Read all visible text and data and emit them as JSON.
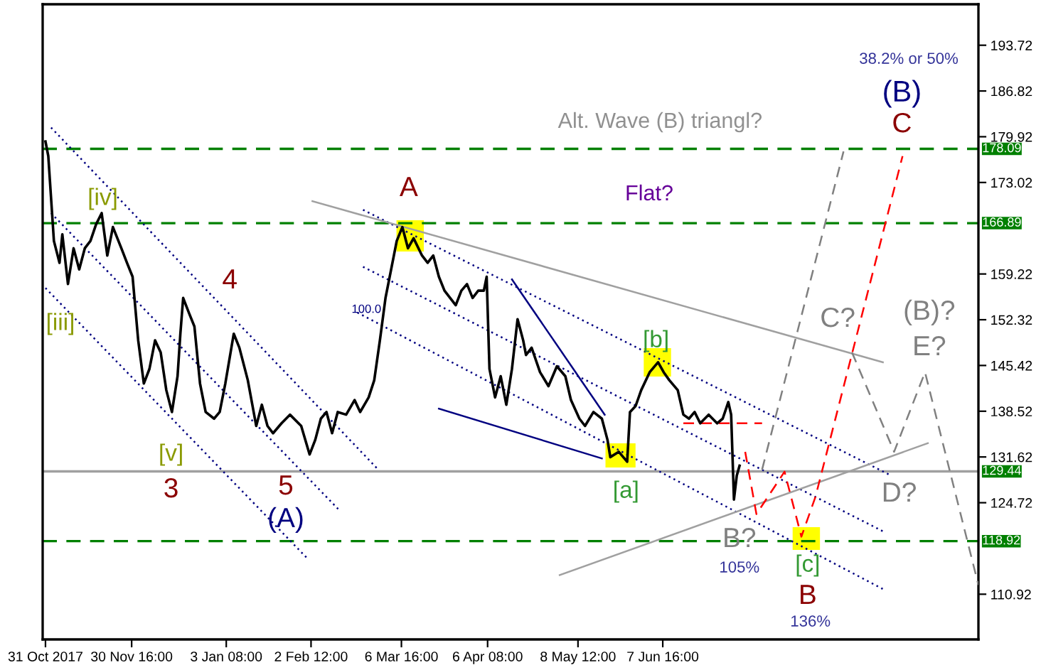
{
  "chart_data": {
    "type": "line",
    "xlim": [
      "2017-10-30",
      "2018-09-28"
    ],
    "ylim": [
      104.1,
      199.9
    ],
    "xticks": [
      {
        "value": "2017-10-31",
        "label": "31 Oct 2017"
      },
      {
        "value": "2017-11-30T16:00",
        "label": "30 Nov 16:00"
      },
      {
        "value": "2018-01-03T08:00",
        "label": "3 Jan 08:00"
      },
      {
        "value": "2018-02-02T12:00",
        "label": "2 Feb 12:00"
      },
      {
        "value": "2018-03-06T16:00",
        "label": "6 Mar 16:00"
      },
      {
        "value": "2018-04-06T08:00",
        "label": "6 Apr 08:00"
      },
      {
        "value": "2018-05-08T12:00",
        "label": "8 May 12:00"
      },
      {
        "value": "2018-06-07T16:00",
        "label": "7 Jun 16:00"
      }
    ],
    "yticks": [
      193.72,
      186.82,
      179.92,
      173.02,
      159.22,
      152.32,
      145.42,
      138.52,
      131.62,
      124.72,
      110.92
    ],
    "grid": false,
    "series": [
      {
        "color": "#000000",
        "line_style": "solid",
        "x": [
          "2017-10-31",
          "2017-11-01",
          "2017-11-03",
          "2017-11-05",
          "2017-11-06",
          "2017-11-08",
          "2017-11-10",
          "2017-11-12",
          "2017-11-14",
          "2017-11-16",
          "2017-11-18",
          "2017-11-20",
          "2017-11-22",
          "2017-11-24",
          "2017-11-27",
          "2017-11-29",
          "2017-12-01",
          "2017-12-03",
          "2017-12-05",
          "2017-12-07",
          "2017-12-09",
          "2017-12-11",
          "2017-12-13",
          "2017-12-15",
          "2017-12-17",
          "2017-12-18",
          "2017-12-19",
          "2017-12-21",
          "2017-12-23",
          "2017-12-25",
          "2017-12-27",
          "2017-12-30",
          "2018-01-01",
          "2018-01-03",
          "2018-01-06",
          "2018-01-08",
          "2018-01-11",
          "2018-01-14",
          "2018-01-16",
          "2018-01-18",
          "2018-01-20",
          "2018-01-23",
          "2018-01-26",
          "2018-01-30",
          "2018-02-02",
          "2018-02-04",
          "2018-02-06",
          "2018-02-08",
          "2018-02-10",
          "2018-02-12",
          "2018-02-15",
          "2018-02-18",
          "2018-02-20",
          "2018-02-23",
          "2018-02-25",
          "2018-02-27",
          "2018-03-01",
          "2018-03-03",
          "2018-03-05",
          "2018-03-07",
          "2018-03-09",
          "2018-03-11",
          "2018-03-14",
          "2018-03-16",
          "2018-03-18",
          "2018-03-20",
          "2018-03-22",
          "2018-03-24",
          "2018-03-26",
          "2018-03-28",
          "2018-03-30",
          "2018-04-01",
          "2018-04-03",
          "2018-04-05",
          "2018-04-06",
          "2018-04-07",
          "2018-04-09",
          "2018-04-11",
          "2018-04-13",
          "2018-04-15",
          "2018-04-17",
          "2018-04-19",
          "2018-04-20",
          "2018-04-22",
          "2018-04-25",
          "2018-04-28",
          "2018-05-01",
          "2018-05-04",
          "2018-05-06",
          "2018-05-09",
          "2018-05-11",
          "2018-05-14",
          "2018-05-17",
          "2018-05-19",
          "2018-05-20",
          "2018-05-23",
          "2018-05-26",
          "2018-05-27",
          "2018-05-29",
          "2018-05-31",
          "2018-06-03",
          "2018-06-06",
          "2018-06-08",
          "2018-06-10",
          "2018-06-13",
          "2018-06-15",
          "2018-06-17",
          "2018-06-19",
          "2018-06-21",
          "2018-06-24",
          "2018-06-27",
          "2018-06-29",
          "2018-07-01",
          "2018-07-02",
          "2018-07-03",
          "2018-07-04",
          "2018-07-05"
        ],
        "values": [
          179.2,
          177.0,
          164.2,
          160.9,
          165.2,
          157.7,
          163.1,
          159.9,
          163.1,
          164.2,
          166.7,
          168.4,
          162.0,
          166.3,
          163.1,
          160.9,
          158.8,
          149.2,
          142.7,
          144.9,
          149.2,
          147.4,
          141.7,
          138.4,
          143.8,
          150.2,
          155.6,
          153.4,
          151.3,
          142.7,
          138.4,
          137.4,
          138.4,
          142.7,
          150.2,
          148.1,
          143.2,
          136.3,
          139.5,
          136.3,
          135.2,
          136.7,
          138.0,
          136.3,
          132.0,
          134.2,
          137.4,
          138.4,
          135.2,
          138.4,
          138.0,
          140.2,
          138.4,
          140.6,
          143.2,
          149.2,
          155.6,
          159.9,
          164.2,
          166.3,
          163.1,
          164.6,
          162.0,
          160.9,
          162.0,
          158.8,
          156.7,
          155.6,
          154.5,
          156.7,
          157.7,
          155.6,
          156.7,
          156.7,
          158.8,
          144.9,
          140.6,
          143.8,
          139.5,
          144.9,
          152.4,
          149.2,
          147.0,
          148.1,
          144.4,
          142.3,
          145.3,
          143.8,
          140.2,
          137.4,
          136.3,
          138.4,
          137.4,
          134.2,
          131.6,
          132.4,
          130.9,
          138.4,
          139.3,
          141.7,
          144.4,
          145.9,
          144.4,
          143.2,
          141.7,
          138.0,
          137.4,
          138.4,
          136.7,
          138.0,
          136.7,
          137.4,
          139.9,
          138.0,
          125.2,
          128.8,
          130.3
        ]
      },
      {
        "color": "#000080",
        "line_style": "dotted",
        "x": [
          "2017-11-02",
          "2018-02-26"
        ],
        "values": [
          181.3,
          129.9
        ]
      },
      {
        "color": "#000080",
        "line_style": "dotted",
        "x": [
          "2017-11-02",
          "2018-02-13"
        ],
        "values": [
          168.4,
          123.4
        ]
      },
      {
        "color": "#000080",
        "line_style": "dotted",
        "x": [
          "2017-10-31",
          "2018-02-01"
        ],
        "values": [
          157.1,
          116.4
        ]
      },
      {
        "color": "#000080",
        "line_style": "dotted",
        "x": [
          "2018-02-21",
          "2018-08-28"
        ],
        "values": [
          168.9,
          128.8
        ]
      },
      {
        "color": "#000080",
        "line_style": "dotted",
        "x": [
          "2018-02-21",
          "2018-08-26"
        ],
        "values": [
          160.3,
          120.2
        ]
      },
      {
        "color": "#000080",
        "line_style": "dotted",
        "x": [
          "2018-02-19",
          "2018-08-25"
        ],
        "values": [
          153.4,
          111.7
        ]
      },
      {
        "color": "#000080",
        "line_style": "solid",
        "x": [
          "2018-03-20",
          "2018-05-17"
        ],
        "values": [
          138.9,
          131.4
        ]
      },
      {
        "color": "#000080",
        "line_style": "solid",
        "x": [
          "2018-04-15",
          "2018-05-18"
        ],
        "values": [
          158.4,
          138.0
        ]
      },
      {
        "color": "#a0a0a0",
        "line_style": "solid",
        "x": [
          "2018-02-03",
          "2018-08-25"
        ],
        "values": [
          170.2,
          145.9
        ]
      },
      {
        "color": "#a0a0a0",
        "line_style": "solid",
        "x": [
          "2018-05-02",
          "2018-09-10"
        ],
        "values": [
          113.8,
          133.7
        ]
      },
      {
        "color": "#808080",
        "line_style": "dashed",
        "x": [
          "2018-07-13",
          "2018-08-11"
        ],
        "values": [
          129.7,
          177.7
        ]
      },
      {
        "color": "#808080",
        "line_style": "dashed",
        "x": [
          "2018-08-14",
          "2018-08-29",
          "2018-09-09",
          "2018-09-28"
        ],
        "values": [
          147.4,
          132.4,
          144.4,
          112.3
        ]
      },
      {
        "color": "#ff0000",
        "line_style": "dashed",
        "x": [
          "2018-06-15",
          "2018-07-13"
        ],
        "values": [
          136.7,
          136.7
        ]
      },
      {
        "color": "#ff0000",
        "line_style": "dashed",
        "x": [
          "2018-07-07",
          "2018-07-11",
          "2018-07-21",
          "2018-07-27",
          "2018-08-01",
          "2018-09-01"
        ],
        "values": [
          132.4,
          123.0,
          129.4,
          119.6,
          125.6,
          177.0
        ]
      }
    ],
    "ref_lines": [
      {
        "axis": "y",
        "value": 178.09,
        "label": "178.09",
        "color": "#008000",
        "line_style": "dashed"
      },
      {
        "axis": "y",
        "value": 166.89,
        "label": "166.89",
        "color": "#008000",
        "line_style": "dashed"
      },
      {
        "axis": "y",
        "value": 129.44,
        "label": "129.44",
        "color": "#a0a0a0",
        "line_style": "solid"
      },
      {
        "axis": "y",
        "value": 118.92,
        "label": "118.92",
        "color": "#008000",
        "line_style": "dashed"
      }
    ],
    "annotations": [
      "[iv]",
      "[iii]",
      "4",
      "[v]",
      "3",
      "5",
      "(A)",
      "100.0",
      "A",
      "Alt. Wave (B) triangl?",
      "Flat?",
      "[b]",
      "[a]",
      "B?",
      "105%",
      "[c]",
      "B",
      "136%",
      "38.2% or 50%",
      "(B)",
      "C",
      "C?",
      "(B)?",
      "E?",
      "D?"
    ]
  }
}
